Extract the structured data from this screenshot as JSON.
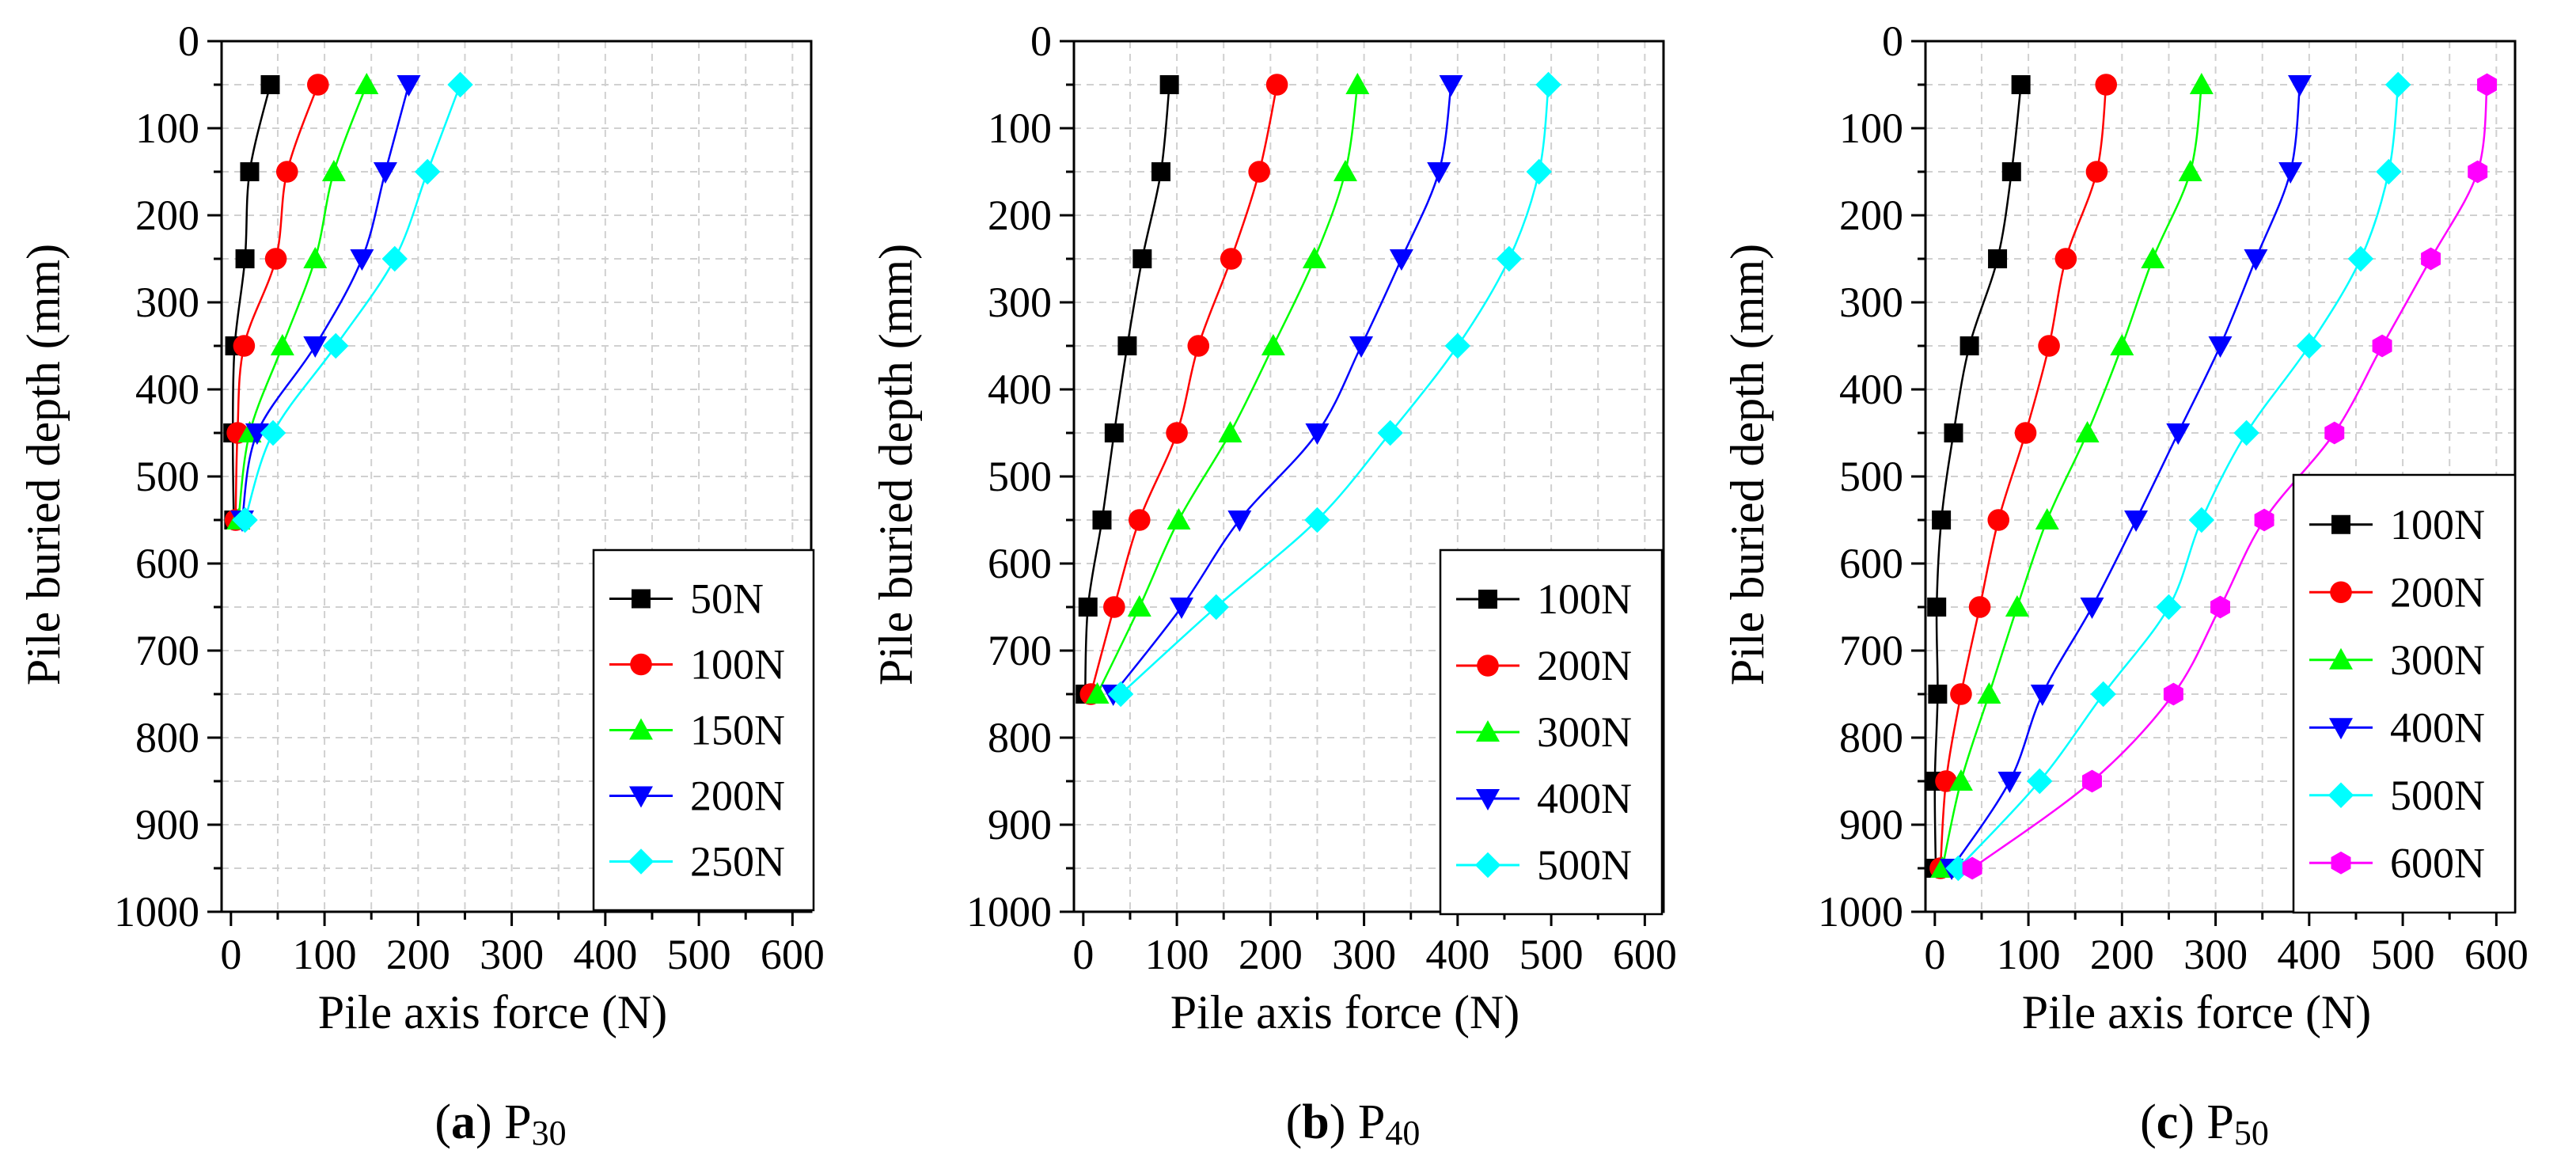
{
  "chart_data": [
    {
      "type": "line",
      "title": "",
      "caption": {
        "letter": "a",
        "label": "P",
        "subscript": "30"
      },
      "xlabel": "Pile axis force (N)",
      "ylabel": "Pile buried depth (mm)",
      "xlim": [
        -10,
        620
      ],
      "ylim": [
        1000,
        0
      ],
      "xticks": [
        0,
        100,
        200,
        300,
        400,
        500,
        600
      ],
      "yticks": [
        0,
        100,
        200,
        300,
        400,
        500,
        600,
        700,
        800,
        900,
        1000
      ],
      "grid": true,
      "legend_position": "bottom-right",
      "series": [
        {
          "name": "50N",
          "color": "#000000",
          "marker": "square",
          "x": [
            42,
            20,
            15,
            4,
            2,
            3
          ],
          "y": [
            50,
            150,
            250,
            350,
            450,
            550
          ]
        },
        {
          "name": "100N",
          "color": "#ff0000",
          "marker": "circle",
          "x": [
            93,
            60,
            48,
            14,
            7,
            5
          ],
          "y": [
            50,
            150,
            250,
            350,
            450,
            550
          ]
        },
        {
          "name": "150N",
          "color": "#00ff00",
          "marker": "triangle-up",
          "x": [
            145,
            110,
            90,
            55,
            20,
            8
          ],
          "y": [
            50,
            150,
            250,
            350,
            450,
            550
          ]
        },
        {
          "name": "200N",
          "color": "#0000ff",
          "marker": "triangle-down",
          "x": [
            190,
            165,
            140,
            90,
            28,
            12
          ],
          "y": [
            50,
            150,
            250,
            350,
            450,
            550
          ]
        },
        {
          "name": "250N",
          "color": "#00ffff",
          "marker": "diamond",
          "x": [
            245,
            210,
            175,
            112,
            45,
            15
          ],
          "y": [
            50,
            150,
            250,
            350,
            450,
            550
          ]
        }
      ]
    },
    {
      "type": "line",
      "title": "",
      "caption": {
        "letter": "b",
        "label": "P",
        "subscript": "40"
      },
      "xlabel": "Pile axis force (N)",
      "ylabel": "Pile buried depth (mm)",
      "xlim": [
        -10,
        620
      ],
      "ylim": [
        1000,
        0
      ],
      "xticks": [
        0,
        100,
        200,
        300,
        400,
        500,
        600
      ],
      "yticks": [
        0,
        100,
        200,
        300,
        400,
        500,
        600,
        700,
        800,
        900,
        1000
      ],
      "grid": true,
      "legend_position": "bottom-right",
      "series": [
        {
          "name": "100N",
          "color": "#000000",
          "marker": "square",
          "x": [
            92,
            83,
            63,
            47,
            33,
            20,
            5,
            2
          ],
          "y": [
            50,
            150,
            250,
            350,
            450,
            550,
            650,
            750
          ]
        },
        {
          "name": "200N",
          "color": "#ff0000",
          "marker": "circle",
          "x": [
            207,
            188,
            158,
            123,
            100,
            60,
            33,
            8
          ],
          "y": [
            50,
            150,
            250,
            350,
            450,
            550,
            650,
            750
          ]
        },
        {
          "name": "300N",
          "color": "#00ff00",
          "marker": "triangle-up",
          "x": [
            293,
            280,
            247,
            203,
            157,
            102,
            60,
            15
          ],
          "y": [
            50,
            150,
            250,
            350,
            450,
            550,
            650,
            750
          ]
        },
        {
          "name": "400N",
          "color": "#0000ff",
          "marker": "triangle-down",
          "x": [
            393,
            380,
            340,
            297,
            250,
            167,
            105,
            32
          ],
          "y": [
            50,
            150,
            250,
            350,
            450,
            550,
            650,
            750
          ]
        },
        {
          "name": "500N",
          "color": "#00ffff",
          "marker": "diamond",
          "x": [
            497,
            487,
            455,
            400,
            328,
            250,
            142,
            40
          ],
          "y": [
            50,
            150,
            250,
            350,
            450,
            550,
            650,
            750
          ]
        }
      ]
    },
    {
      "type": "line",
      "title": "",
      "caption": {
        "letter": "c",
        "label": "P",
        "subscript": "50"
      },
      "xlabel": "Pile axis force (N)",
      "ylabel": "Pile buried depth (mm)",
      "xlim": [
        -10,
        620
      ],
      "ylim": [
        1000,
        0
      ],
      "xticks": [
        0,
        100,
        200,
        300,
        400,
        500,
        600
      ],
      "yticks": [
        0,
        100,
        200,
        300,
        400,
        500,
        600,
        700,
        800,
        900,
        1000
      ],
      "grid": true,
      "legend_position": "bottom-right",
      "series": [
        {
          "name": "100N",
          "color": "#000000",
          "marker": "square",
          "x": [
            92,
            82,
            67,
            37,
            20,
            7,
            2,
            3,
            0,
            1
          ],
          "y": [
            50,
            150,
            250,
            350,
            450,
            550,
            650,
            750,
            850,
            950
          ]
        },
        {
          "name": "200N",
          "color": "#ff0000",
          "marker": "circle",
          "x": [
            183,
            173,
            140,
            122,
            97,
            68,
            48,
            28,
            12,
            6
          ],
          "y": [
            50,
            150,
            250,
            350,
            450,
            550,
            650,
            750,
            850,
            950
          ]
        },
        {
          "name": "300N",
          "color": "#00ff00",
          "marker": "triangle-up",
          "x": [
            285,
            273,
            233,
            200,
            163,
            120,
            88,
            58,
            28,
            8
          ],
          "y": [
            50,
            150,
            250,
            350,
            450,
            550,
            650,
            750,
            850,
            950
          ]
        },
        {
          "name": "400N",
          "color": "#0000ff",
          "marker": "triangle-down",
          "x": [
            390,
            380,
            343,
            305,
            260,
            215,
            168,
            115,
            80,
            18
          ],
          "y": [
            50,
            150,
            250,
            350,
            450,
            550,
            650,
            750,
            850,
            950
          ]
        },
        {
          "name": "500N",
          "color": "#00ffff",
          "marker": "diamond",
          "x": [
            495,
            485,
            455,
            400,
            333,
            285,
            250,
            180,
            112,
            25
          ],
          "y": [
            50,
            150,
            250,
            350,
            450,
            550,
            650,
            750,
            850,
            950
          ]
        },
        {
          "name": "600N",
          "color": "#ff00ff",
          "marker": "hexagon",
          "x": [
            590,
            580,
            530,
            478,
            427,
            352,
            305,
            255,
            168,
            40
          ],
          "y": [
            50,
            150,
            250,
            350,
            450,
            550,
            650,
            750,
            850,
            950
          ]
        }
      ]
    }
  ]
}
